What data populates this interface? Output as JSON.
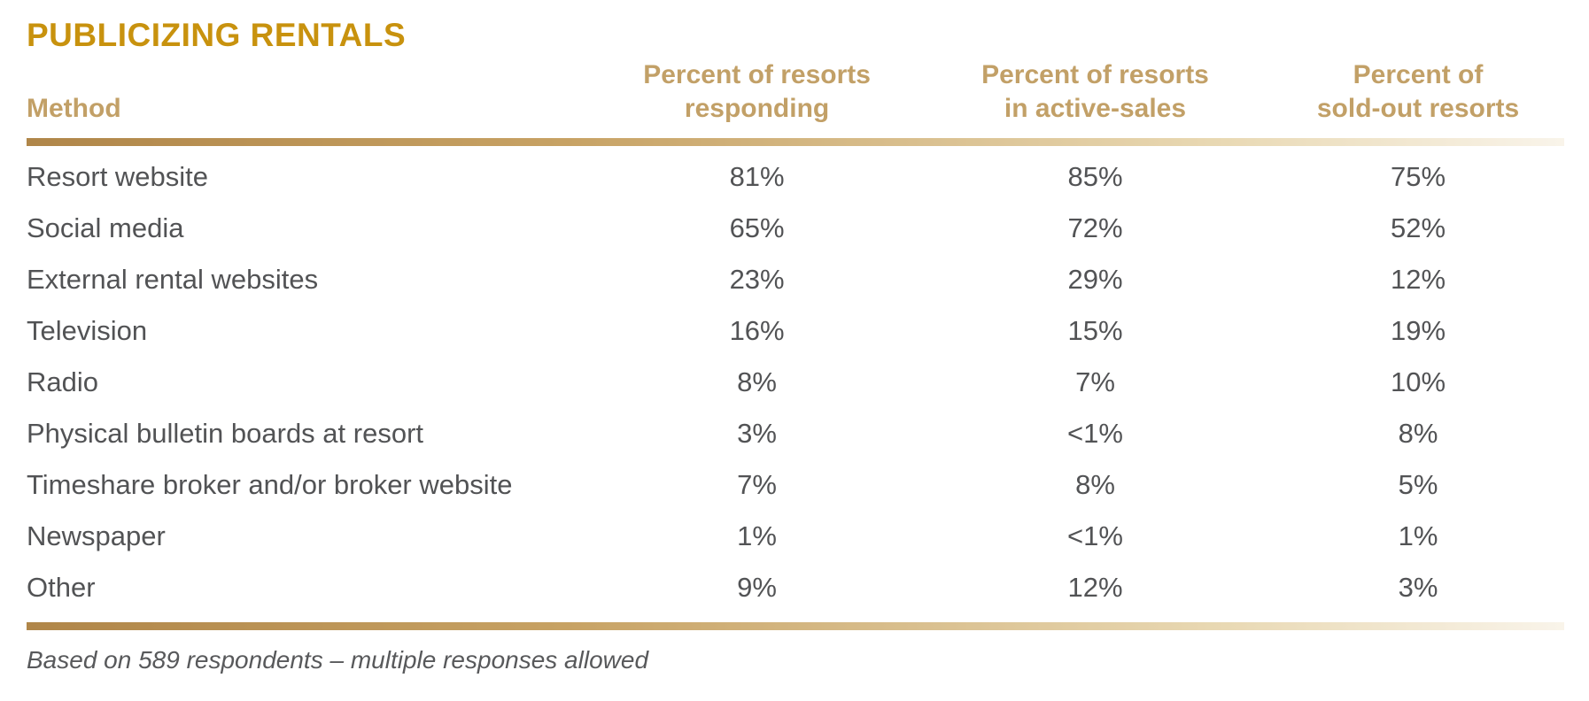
{
  "title": "PUBLICIZING RENTALS",
  "colors": {
    "title_gold": "#C8920E",
    "header_tan": "#C2A067",
    "body_gray": "#525355",
    "rule_dark": "#B08649",
    "rule_light": "#F9F4EA"
  },
  "table": {
    "headers": {
      "method": "Method",
      "responding": "Percent of resorts\nresponding",
      "active_sales": "Percent of resorts\nin active-sales",
      "sold_out": "Percent of\nsold-out resorts"
    },
    "rows": [
      {
        "method": "Resort website",
        "responding": "81%",
        "active_sales": "85%",
        "sold_out": "75%"
      },
      {
        "method": "Social media",
        "responding": "65%",
        "active_sales": "72%",
        "sold_out": "52%"
      },
      {
        "method": "External rental websites",
        "responding": "23%",
        "active_sales": "29%",
        "sold_out": "12%"
      },
      {
        "method": "Television",
        "responding": "16%",
        "active_sales": "15%",
        "sold_out": "19%"
      },
      {
        "method": "Radio",
        "responding": "8%",
        "active_sales": "7%",
        "sold_out": "10%"
      },
      {
        "method": "Physical bulletin boards at resort",
        "responding": "3%",
        "active_sales": "<1%",
        "sold_out": "8%"
      },
      {
        "method": "Timeshare broker and/or broker website",
        "responding": "7%",
        "active_sales": "8%",
        "sold_out": "5%"
      },
      {
        "method": "Newspaper",
        "responding": "1%",
        "active_sales": "<1%",
        "sold_out": "1%"
      },
      {
        "method": "Other",
        "responding": "9%",
        "active_sales": "12%",
        "sold_out": "3%"
      }
    ]
  },
  "footnote": "Based on 589 respondents – multiple responses allowed",
  "chart_data": {
    "type": "table",
    "title": "PUBLICIZING RENTALS",
    "columns": [
      "Method",
      "Percent of resorts responding",
      "Percent of resorts in active-sales",
      "Percent of sold-out resorts"
    ],
    "rows": [
      [
        "Resort website",
        "81%",
        "85%",
        "75%"
      ],
      [
        "Social media",
        "65%",
        "72%",
        "52%"
      ],
      [
        "External rental websites",
        "23%",
        "29%",
        "12%"
      ],
      [
        "Television",
        "16%",
        "15%",
        "19%"
      ],
      [
        "Radio",
        "8%",
        "7%",
        "10%"
      ],
      [
        "Physical bulletin boards at resort",
        "3%",
        "<1%",
        "8%"
      ],
      [
        "Timeshare broker and/or broker website",
        "7%",
        "8%",
        "5%"
      ],
      [
        "Newspaper",
        "1%",
        "<1%",
        "1%"
      ],
      [
        "Other",
        "9%",
        "12%",
        "3%"
      ]
    ],
    "footnote": "Based on 589 respondents – multiple responses allowed"
  }
}
